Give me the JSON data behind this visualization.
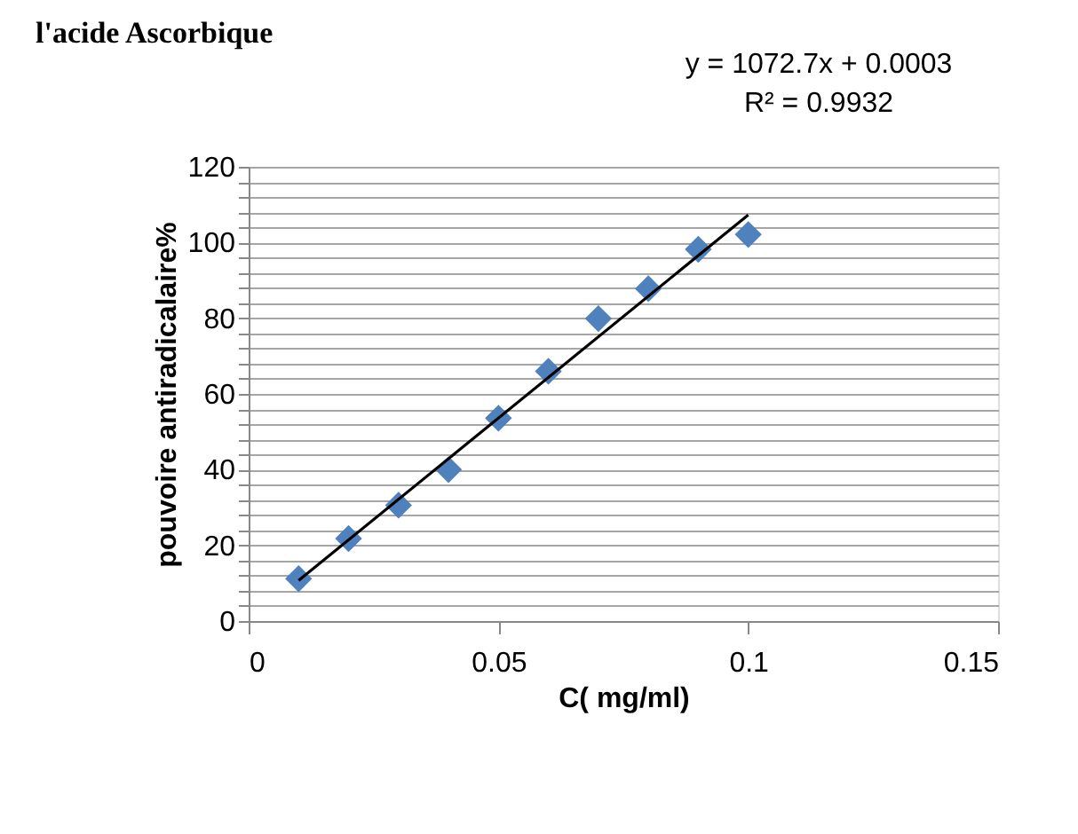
{
  "chart_data": {
    "type": "scatter",
    "title": "l'acide Ascorbique",
    "xlabel": "C( mg/ml)",
    "ylabel": "pouvoire  antiradicalaire%",
    "annotations": [
      "y = 1072.7x + 0.0003",
      "R² = 0.9932"
    ],
    "x": [
      0.01,
      0.02,
      0.03,
      0.04,
      0.05,
      0.06,
      0.07,
      0.08,
      0.09,
      0.1
    ],
    "series": [
      {
        "color": "#4f81bd",
        "values": [
          11.2,
          21.8,
          30.6,
          40,
          53.6,
          66,
          79.9,
          87.8,
          98.2,
          102.1
        ],
        "marker": "diamond"
      },
      {
        "type": "line",
        "color": "#000000",
        "x": [
          0.01,
          0.1
        ],
        "values": [
          10.7,
          107.3
        ],
        "marker": "none",
        "line_style": "solid"
      }
    ],
    "xlim": [
      0,
      0.15
    ],
    "xticks": [
      0,
      0.05,
      0.1,
      0.15
    ],
    "ylim": [
      0,
      120
    ],
    "yticks": [
      0,
      {
        "value": 4,
        "label": null
      },
      {
        "value": 8,
        "label": null
      },
      {
        "value": 12,
        "label": null
      },
      {
        "value": 16,
        "label": null
      },
      20,
      {
        "value": 24,
        "label": null
      },
      {
        "value": 28,
        "label": null
      },
      {
        "value": 32,
        "label": null
      },
      {
        "value": 36,
        "label": null
      },
      40,
      {
        "value": 44,
        "label": null
      },
      {
        "value": 48,
        "label": null
      },
      {
        "value": 52,
        "label": null
      },
      {
        "value": 56,
        "label": null
      },
      60,
      {
        "value": 64,
        "label": null
      },
      {
        "value": 68,
        "label": null
      },
      {
        "value": 72,
        "label": null
      },
      {
        "value": 76,
        "label": null
      },
      80,
      {
        "value": 84,
        "label": null
      },
      {
        "value": 88,
        "label": null
      },
      {
        "value": 92,
        "label": null
      },
      {
        "value": 96,
        "label": null
      },
      100,
      {
        "value": 104,
        "label": null
      },
      {
        "value": 108,
        "label": null
      },
      {
        "value": 112,
        "label": null
      },
      {
        "value": 116,
        "label": null
      },
      120
    ],
    "grid": "y"
  }
}
